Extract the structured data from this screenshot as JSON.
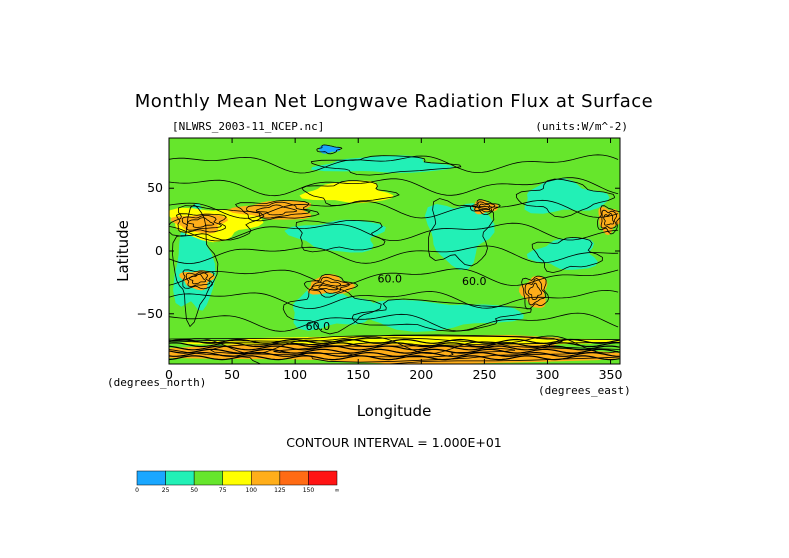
{
  "chart_data": {
    "type": "contour",
    "title": "Monthly Mean Net Longwave Radiation Flux at Surface",
    "file_label": "[NLWRS_2003-11_NCEP.nc]",
    "units_label": "(units:W/m^-2)",
    "xlabel": "Longitude",
    "ylabel": "Latitude",
    "x_unit_label": "(degrees_east)",
    "y_unit_label": "(degrees_north)",
    "xlim": [
      0,
      357.5
    ],
    "ylim": [
      -90,
      90
    ],
    "x_ticks": [
      0,
      50,
      100,
      150,
      200,
      250,
      300,
      350
    ],
    "y_ticks": [
      50,
      0,
      -50
    ],
    "contour_interval_label": "CONTOUR INTERVAL = 1.000E+01",
    "contour_labels": [
      {
        "text": "60.0",
        "lon": 175,
        "lat": -25
      },
      {
        "text": "60.0",
        "lon": 242,
        "lat": -27
      },
      {
        "text": "60.0",
        "lon": 118,
        "lat": -63
      }
    ],
    "colorbar": {
      "ticks": [
        "0",
        "25",
        "50",
        "75",
        "100",
        "125",
        "150",
        "∞"
      ],
      "colors": [
        "#1aa7ff",
        "#22f0b6",
        "#66e62c",
        "#ffff00",
        "#ffae1a",
        "#ff6b14",
        "#ff1414"
      ]
    },
    "fields": {
      "background_color": "#66e62c",
      "regions": [
        {
          "level": 25,
          "color": "#22f0b6",
          "lon": [
            5,
            35
          ],
          "lat": [
            -50,
            30
          ]
        },
        {
          "level": 25,
          "color": "#22f0b6",
          "lon": [
            95,
            160
          ],
          "lat": [
            -62,
            -30
          ]
        },
        {
          "level": 25,
          "color": "#22f0b6",
          "lon": [
            150,
            275
          ],
          "lat": [
            -62,
            -40
          ]
        },
        {
          "level": 25,
          "color": "#22f0b6",
          "lon": [
            205,
            255
          ],
          "lat": [
            -10,
            40
          ]
        },
        {
          "level": 25,
          "color": "#22f0b6",
          "lon": [
            100,
            170
          ],
          "lat": [
            0,
            25
          ]
        },
        {
          "level": 25,
          "color": "#22f0b6",
          "lon": [
            290,
            340
          ],
          "lat": [
            -15,
            10
          ]
        },
        {
          "level": 25,
          "color": "#22f0b6",
          "lon": [
            120,
            220
          ],
          "lat": [
            62,
            75
          ]
        },
        {
          "level": 25,
          "color": "#22f0b6",
          "lon": [
            280,
            345
          ],
          "lat": [
            30,
            55
          ]
        },
        {
          "level": 0,
          "color": "#1aa7ff",
          "lon": [
            118,
            135
          ],
          "lat": [
            78,
            84
          ]
        },
        {
          "level": 75,
          "color": "#ffff00",
          "lon": [
            0,
            70
          ],
          "lat": [
            10,
            35
          ]
        },
        {
          "level": 100,
          "color": "#ffae1a",
          "lon": [
            5,
            45
          ],
          "lat": [
            15,
            30
          ]
        },
        {
          "level": 100,
          "color": "#ffae1a",
          "lon": [
            55,
            115
          ],
          "lat": [
            25,
            40
          ]
        },
        {
          "level": 75,
          "color": "#ffff00",
          "lon": [
            110,
            175
          ],
          "lat": [
            38,
            55
          ]
        },
        {
          "level": 100,
          "color": "#ffae1a",
          "lon": [
            110,
            145
          ],
          "lat": [
            -35,
            -20
          ]
        },
        {
          "level": 100,
          "color": "#ffae1a",
          "lon": [
            240,
            260
          ],
          "lat": [
            30,
            40
          ]
        },
        {
          "level": 100,
          "color": "#ffae1a",
          "lon": [
            340,
            357
          ],
          "lat": [
            15,
            35
          ]
        },
        {
          "level": 100,
          "color": "#ffae1a",
          "lon": [
            10,
            35
          ],
          "lat": [
            -30,
            -15
          ]
        },
        {
          "level": 100,
          "color": "#ffae1a",
          "lon": [
            280,
            300
          ],
          "lat": [
            -45,
            -20
          ]
        },
        {
          "level": 100,
          "color": "#ffae1a",
          "lon": [
            0,
            357
          ],
          "lat": [
            -90,
            -68
          ]
        },
        {
          "level": 75,
          "color": "#ffff00",
          "lon": [
            20,
            357
          ],
          "lat": [
            -75,
            -68
          ]
        }
      ]
    }
  }
}
